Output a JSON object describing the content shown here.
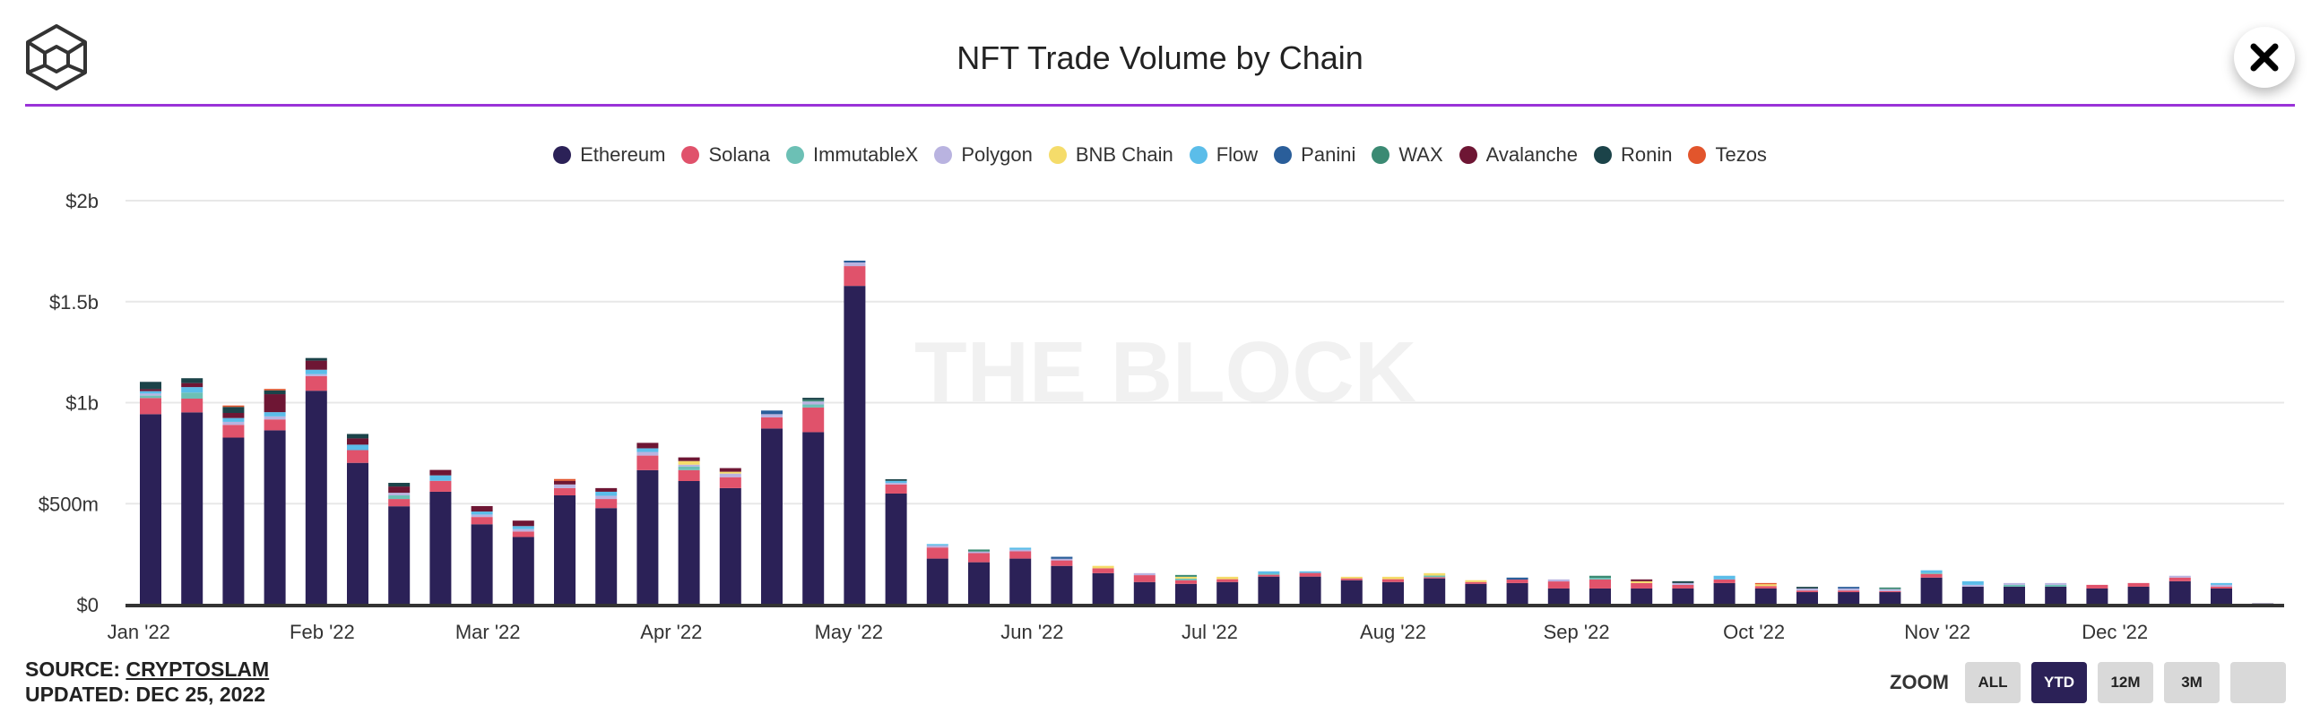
{
  "header": {
    "title": "NFT Trade Volume by Chain",
    "logo_icon": "the-block-cube-logo",
    "close_icon": "close-x-icon"
  },
  "footer": {
    "source_prefix": "SOURCE: ",
    "source_link": "CRYPTOSLAM",
    "updated": "UPDATED: DEC 25, 2022"
  },
  "zoom": {
    "label": "ZOOM",
    "buttons": [
      "ALL",
      "YTD",
      "12M",
      "3M",
      ""
    ],
    "active": "YTD"
  },
  "watermark": "THE BLOCK",
  "chart_data": {
    "type": "bar",
    "stacked": true,
    "title": "NFT Trade Volume by Chain",
    "xlabel": "",
    "ylabel": "",
    "unit": "USD millions",
    "ylim": [
      0,
      2000
    ],
    "yticks": [
      0,
      500,
      1000,
      1500,
      2000
    ],
    "ytick_labels": [
      "$0",
      "$500m",
      "$1b",
      "$1.5b",
      "$2b"
    ],
    "xtick_dates": [
      "2022-01-01",
      "2022-02-01",
      "2022-03-01",
      "2022-04-01",
      "2022-05-01",
      "2022-06-01",
      "2022-07-01",
      "2022-08-01",
      "2022-09-01",
      "2022-10-01",
      "2022-11-01",
      "2022-12-01"
    ],
    "xtick_labels": [
      "Jan '22",
      "Feb '22",
      "Mar '22",
      "Apr '22",
      "May '22",
      "Jun '22",
      "Jul '22",
      "Aug '22",
      "Sep '22",
      "Oct '22",
      "Nov '22",
      "Dec '22"
    ],
    "grid": true,
    "legend": "top",
    "categories": [
      "2022-01-03",
      "2022-01-10",
      "2022-01-17",
      "2022-01-24",
      "2022-01-31",
      "2022-02-07",
      "2022-02-14",
      "2022-02-21",
      "2022-02-28",
      "2022-03-07",
      "2022-03-14",
      "2022-03-21",
      "2022-03-28",
      "2022-04-04",
      "2022-04-11",
      "2022-04-18",
      "2022-04-25",
      "2022-05-02",
      "2022-05-09",
      "2022-05-16",
      "2022-05-23",
      "2022-05-30",
      "2022-06-06",
      "2022-06-13",
      "2022-06-20",
      "2022-06-27",
      "2022-07-04",
      "2022-07-11",
      "2022-07-18",
      "2022-07-25",
      "2022-08-01",
      "2022-08-08",
      "2022-08-15",
      "2022-08-22",
      "2022-08-29",
      "2022-09-05",
      "2022-09-12",
      "2022-09-19",
      "2022-09-26",
      "2022-10-03",
      "2022-10-10",
      "2022-10-17",
      "2022-10-24",
      "2022-10-31",
      "2022-11-07",
      "2022-11-14",
      "2022-11-21",
      "2022-11-28",
      "2022-12-05",
      "2022-12-12",
      "2022-12-19",
      "2022-12-26"
    ],
    "series": [
      {
        "name": "Ethereum",
        "color": "#2b2157",
        "values": [
          943,
          952,
          827,
          863,
          1059,
          702,
          487,
          559,
          398,
          335,
          541,
          478,
          666,
          612,
          577,
          872,
          854,
          1578,
          550,
          228,
          210,
          228,
          192,
          156,
          112,
          103,
          112,
          139,
          139,
          121,
          112,
          130,
          103,
          107,
          80,
          80,
          80,
          80,
          107,
          80,
          62,
          62,
          62,
          134,
          89,
          89,
          89,
          80,
          89,
          116,
          80,
          6
        ]
      },
      {
        "name": "Solana",
        "color": "#e0526b",
        "values": [
          80,
          68,
          63,
          54,
          72,
          63,
          36,
          54,
          36,
          27,
          36,
          45,
          72,
          54,
          54,
          55,
          122,
          98,
          45,
          55,
          45,
          36,
          27,
          24,
          34,
          18,
          14,
          9,
          18,
          9,
          14,
          6,
          9,
          17,
          35,
          45,
          27,
          18,
          18,
          12,
          8,
          8,
          5,
          18,
          0,
          0,
          0,
          18,
          18,
          18,
          9,
          0
        ]
      },
      {
        "name": "ImmutableX",
        "color": "#6cc0b5",
        "values": [
          12,
          30,
          0,
          0,
          0,
          0,
          18,
          0,
          0,
          0,
          0,
          0,
          0,
          18,
          0,
          0,
          15,
          0,
          0,
          0,
          0,
          0,
          0,
          0,
          0,
          8,
          0,
          5,
          0,
          0,
          0,
          8,
          0,
          0,
          0,
          8,
          0,
          0,
          0,
          0,
          0,
          0,
          0,
          5,
          0,
          9,
          9,
          0,
          0,
          0,
          0,
          0
        ]
      },
      {
        "name": "Polygon",
        "color": "#b9b3e0",
        "values": [
          10,
          0,
          15,
          15,
          10,
          0,
          13,
          0,
          12,
          12,
          18,
          16,
          18,
          9,
          18,
          16,
          15,
          18,
          8,
          10,
          8,
          8,
          8,
          0,
          10,
          0,
          0,
          0,
          0,
          0,
          0,
          0,
          0,
          0,
          10,
          0,
          0,
          9,
          0,
          0,
          10,
          10,
          10,
          0,
          9,
          9,
          9,
          0,
          0,
          9,
          9,
          0
        ]
      },
      {
        "name": "BNB Chain",
        "color": "#f5dc6a",
        "values": [
          0,
          0,
          0,
          0,
          0,
          0,
          0,
          0,
          0,
          0,
          0,
          0,
          0,
          18,
          9,
          0,
          0,
          0,
          0,
          0,
          0,
          0,
          0,
          12,
          0,
          9,
          12,
          0,
          0,
          8,
          12,
          12,
          9,
          0,
          0,
          0,
          9,
          0,
          0,
          9,
          0,
          0,
          0,
          0,
          0,
          0,
          0,
          0,
          0,
          0,
          0,
          0
        ]
      },
      {
        "name": "Flow",
        "color": "#5bbde9",
        "values": [
          12,
          27,
          19,
          21,
          22,
          27,
          0,
          27,
          15,
          15,
          0,
          20,
          18,
          0,
          0,
          0,
          0,
          0,
          10,
          7,
          0,
          10,
          0,
          0,
          0,
          0,
          0,
          12,
          8,
          0,
          0,
          0,
          0,
          0,
          0,
          0,
          0,
          0,
          18,
          0,
          0,
          0,
          0,
          13,
          18,
          0,
          0,
          0,
          0,
          0,
          9,
          0
        ]
      },
      {
        "name": "Panini",
        "color": "#2a5e9a",
        "values": [
          0,
          0,
          0,
          0,
          0,
          0,
          0,
          0,
          0,
          0,
          0,
          0,
          0,
          0,
          0,
          18,
          0,
          9,
          0,
          0,
          0,
          0,
          10,
          0,
          0,
          0,
          0,
          0,
          0,
          0,
          0,
          0,
          0,
          10,
          0,
          0,
          0,
          0,
          0,
          0,
          0,
          8,
          0,
          0,
          0,
          0,
          0,
          0,
          0,
          0,
          0,
          0
        ]
      },
      {
        "name": "WAX",
        "color": "#3b8a73",
        "values": [
          0,
          0,
          0,
          0,
          0,
          0,
          0,
          0,
          0,
          0,
          0,
          0,
          0,
          0,
          0,
          0,
          8,
          0,
          0,
          0,
          10,
          0,
          0,
          0,
          0,
          9,
          0,
          0,
          0,
          0,
          0,
          0,
          0,
          0,
          0,
          10,
          0,
          0,
          0,
          0,
          0,
          0,
          8,
          0,
          0,
          0,
          0,
          0,
          0,
          0,
          0,
          0
        ]
      },
      {
        "name": "Avalanche",
        "color": "#6e1634",
        "values": [
          10,
          20,
          25,
          89,
          45,
          31,
          31,
          27,
          27,
          27,
          18,
          18,
          27,
          18,
          18,
          0,
          0,
          0,
          0,
          0,
          0,
          0,
          0,
          0,
          0,
          0,
          0,
          0,
          0,
          0,
          0,
          0,
          0,
          0,
          0,
          0,
          9,
          0,
          0,
          0,
          0,
          0,
          0,
          0,
          0,
          0,
          0,
          0,
          0,
          0,
          0,
          0
        ]
      },
      {
        "name": "Ronin",
        "color": "#1b4349",
        "values": [
          36,
          24,
          30,
          19,
          13,
          22,
          18,
          0,
          0,
          0,
          0,
          0,
          0,
          0,
          0,
          0,
          10,
          0,
          8,
          0,
          0,
          0,
          0,
          0,
          0,
          0,
          0,
          0,
          0,
          0,
          0,
          0,
          0,
          0,
          0,
          0,
          0,
          9,
          0,
          0,
          8,
          0,
          0,
          0,
          0,
          0,
          0,
          0,
          0,
          0,
          0,
          0
        ]
      },
      {
        "name": "Tezos",
        "color": "#e2552c",
        "values": [
          0,
          0,
          7,
          7,
          0,
          0,
          0,
          0,
          0,
          0,
          9,
          0,
          0,
          0,
          0,
          0,
          0,
          0,
          0,
          0,
          0,
          0,
          0,
          0,
          0,
          0,
          0,
          0,
          0,
          0,
          0,
          0,
          0,
          0,
          0,
          0,
          0,
          0,
          0,
          6,
          0,
          0,
          0,
          0,
          0,
          0,
          0,
          0,
          0,
          0,
          0,
          0
        ]
      }
    ]
  }
}
